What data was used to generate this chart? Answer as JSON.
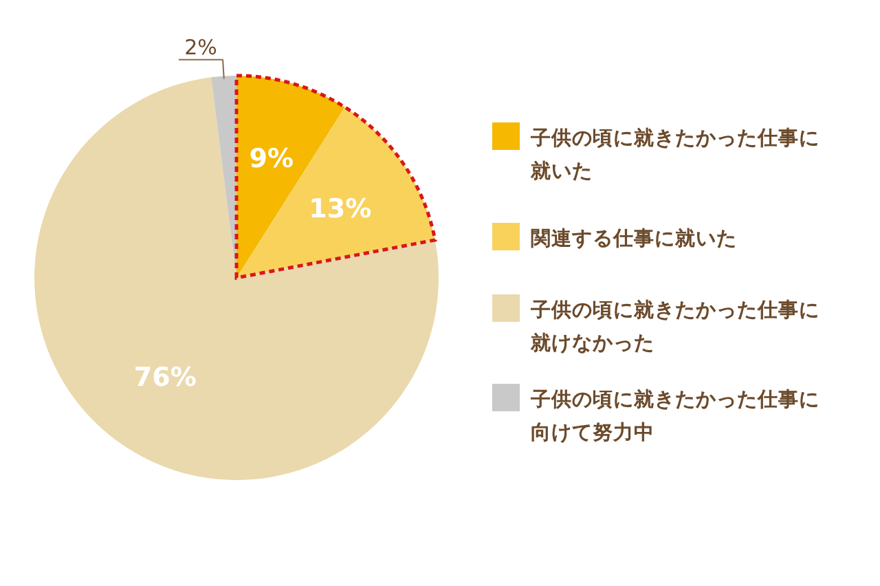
{
  "chart_data": {
    "type": "pie",
    "categories": [
      "子供の頃に就きたかった仕事に就いた",
      "関連する仕事に就いた",
      "子供の頃に就きたかった仕事に就けなかった",
      "子供の頃に就きたかった仕事に向けて努力中"
    ],
    "values": [
      9,
      13,
      76,
      2
    ],
    "colors": [
      "#f6b800",
      "#f9d25c",
      "#ead9ad",
      "#c9c9c9"
    ],
    "value_labels": [
      "9%",
      "13%",
      "76%",
      "2%"
    ],
    "legend": "right"
  }
}
